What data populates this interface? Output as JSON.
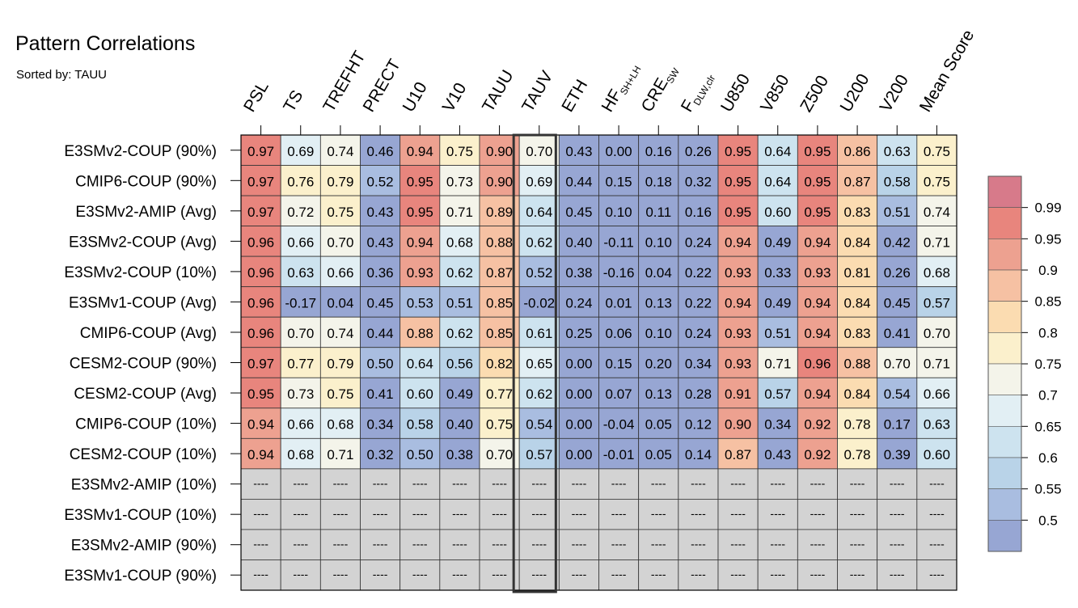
{
  "chart_data": {
    "type": "heatmap",
    "title": "Pattern Correlations",
    "subtitle": "Sorted by: TAUU",
    "columns": [
      {
        "key": "PSL",
        "label": "PSL",
        "sub": ""
      },
      {
        "key": "TS",
        "label": "TS",
        "sub": ""
      },
      {
        "key": "TREFHT",
        "label": "TREFHT",
        "sub": ""
      },
      {
        "key": "PRECT",
        "label": "PRECT",
        "sub": ""
      },
      {
        "key": "U10",
        "label": "U10",
        "sub": ""
      },
      {
        "key": "V10",
        "label": "V10",
        "sub": ""
      },
      {
        "key": "TAUU",
        "label": "TAUU",
        "sub": ""
      },
      {
        "key": "TAUV",
        "label": "TAUV",
        "sub": ""
      },
      {
        "key": "ETH",
        "label": "ETH",
        "sub": ""
      },
      {
        "key": "HF",
        "label": "HF",
        "sub": "SH+LH"
      },
      {
        "key": "CRE",
        "label": "CRE",
        "sub": "SW"
      },
      {
        "key": "F",
        "label": "F",
        "sub": "DLW,clr"
      },
      {
        "key": "U850",
        "label": "U850",
        "sub": ""
      },
      {
        "key": "V850",
        "label": "V850",
        "sub": ""
      },
      {
        "key": "Z500",
        "label": "Z500",
        "sub": ""
      },
      {
        "key": "U200",
        "label": "U200",
        "sub": ""
      },
      {
        "key": "V200",
        "label": "V200",
        "sub": ""
      },
      {
        "key": "Mean Score",
        "label": "Mean Score",
        "sub": ""
      }
    ],
    "highlight_column": "TAUV",
    "rows": [
      {
        "label": "E3SMv2-COUP (90%)",
        "values": [
          0.97,
          0.69,
          0.74,
          0.46,
          0.94,
          0.75,
          0.9,
          0.7,
          0.43,
          0.0,
          0.16,
          0.26,
          0.95,
          0.64,
          0.95,
          0.86,
          0.63,
          0.75
        ]
      },
      {
        "label": "CMIP6-COUP (90%)",
        "values": [
          0.97,
          0.76,
          0.79,
          0.52,
          0.95,
          0.73,
          0.9,
          0.69,
          0.44,
          0.15,
          0.18,
          0.32,
          0.95,
          0.64,
          0.95,
          0.87,
          0.58,
          0.75
        ]
      },
      {
        "label": "E3SMv2-AMIP (Avg)",
        "values": [
          0.97,
          0.72,
          0.75,
          0.43,
          0.95,
          0.71,
          0.89,
          0.64,
          0.45,
          0.1,
          0.11,
          0.16,
          0.95,
          0.6,
          0.95,
          0.83,
          0.51,
          0.74
        ]
      },
      {
        "label": "E3SMv2-COUP (Avg)",
        "values": [
          0.96,
          0.66,
          0.7,
          0.43,
          0.94,
          0.68,
          0.88,
          0.62,
          0.4,
          -0.11,
          0.1,
          0.24,
          0.94,
          0.49,
          0.94,
          0.84,
          0.42,
          0.71
        ]
      },
      {
        "label": "E3SMv2-COUP (10%)",
        "values": [
          0.96,
          0.63,
          0.66,
          0.36,
          0.93,
          0.62,
          0.87,
          0.52,
          0.38,
          -0.16,
          0.04,
          0.22,
          0.93,
          0.33,
          0.93,
          0.81,
          0.26,
          0.68
        ]
      },
      {
        "label": "E3SMv1-COUP (Avg)",
        "values": [
          0.96,
          -0.17,
          0.04,
          0.45,
          0.53,
          0.51,
          0.85,
          -0.02,
          0.24,
          0.01,
          0.13,
          0.22,
          0.94,
          0.49,
          0.94,
          0.84,
          0.45,
          0.57
        ]
      },
      {
        "label": "CMIP6-COUP (Avg)",
        "values": [
          0.96,
          0.7,
          0.74,
          0.44,
          0.88,
          0.62,
          0.85,
          0.61,
          0.25,
          0.06,
          0.1,
          0.24,
          0.93,
          0.51,
          0.94,
          0.83,
          0.41,
          0.7
        ]
      },
      {
        "label": "CESM2-COUP (90%)",
        "values": [
          0.97,
          0.77,
          0.79,
          0.5,
          0.64,
          0.56,
          0.82,
          0.65,
          0.0,
          0.15,
          0.2,
          0.34,
          0.93,
          0.71,
          0.96,
          0.88,
          0.7,
          0.71
        ]
      },
      {
        "label": "CESM2-COUP (Avg)",
        "values": [
          0.95,
          0.73,
          0.75,
          0.41,
          0.6,
          0.49,
          0.77,
          0.62,
          0.0,
          0.07,
          0.13,
          0.28,
          0.91,
          0.57,
          0.94,
          0.84,
          0.54,
          0.66
        ]
      },
      {
        "label": "CMIP6-COUP (10%)",
        "values": [
          0.94,
          0.66,
          0.68,
          0.34,
          0.58,
          0.4,
          0.75,
          0.54,
          0.0,
          -0.04,
          0.05,
          0.12,
          0.9,
          0.34,
          0.92,
          0.78,
          0.17,
          0.63
        ]
      },
      {
        "label": "CESM2-COUP (10%)",
        "values": [
          0.94,
          0.68,
          0.71,
          0.32,
          0.5,
          0.38,
          0.7,
          0.57,
          0.0,
          -0.01,
          0.05,
          0.14,
          0.87,
          0.43,
          0.92,
          0.78,
          0.39,
          0.6
        ]
      },
      {
        "label": "E3SMv2-AMIP (10%)",
        "values": []
      },
      {
        "label": "E3SMv1-COUP (10%)",
        "values": []
      },
      {
        "label": "E3SMv2-AMIP (90%)",
        "values": []
      },
      {
        "label": "E3SMv1-COUP (90%)",
        "values": []
      }
    ],
    "missing_text": "----",
    "colorbar": {
      "ticks": [
        "0.99",
        "0.95",
        "0.9",
        "0.85",
        "0.8",
        "0.75",
        "0.7",
        "0.65",
        "0.6",
        "0.55",
        "0.5"
      ],
      "bounds": [
        0.5,
        0.55,
        0.6,
        0.65,
        0.7,
        0.75,
        0.8,
        0.85,
        0.9,
        0.95,
        0.99
      ],
      "colors": [
        "#97a6d3",
        "#a9bde0",
        "#b9d3e8",
        "#cde3ef",
        "#e2eff4",
        "#f4f4ea",
        "#fbf0cc",
        "#fbdcb1",
        "#f6c1a3",
        "#eda190",
        "#e8857d",
        "#d77a8a"
      ]
    },
    "missing_color": "#d3d3d3"
  }
}
